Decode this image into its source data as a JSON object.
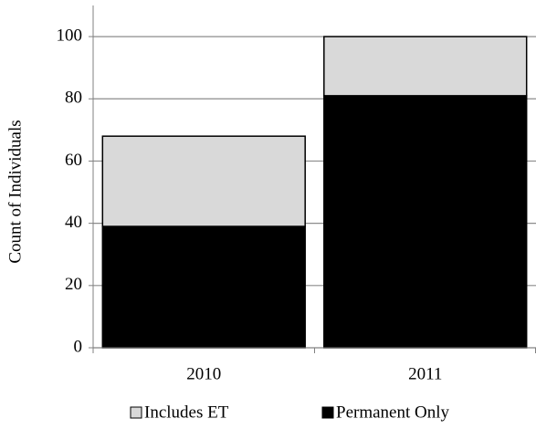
{
  "chart_data": {
    "type": "stacked-bar",
    "y_label": "Count of Individuals",
    "categories": [
      "2010",
      "2011"
    ],
    "series": [
      {
        "name": "Includes ET",
        "color": "#d9d9d9",
        "values": [
          29,
          19
        ]
      },
      {
        "name": "Permanent Only",
        "color": "#000000",
        "values": [
          39,
          81
        ]
      }
    ],
    "ylim": [
      0,
      110
    ],
    "yticks": [
      0,
      20,
      40,
      60,
      80,
      100
    ],
    "grid": true,
    "legend": "bottom"
  }
}
